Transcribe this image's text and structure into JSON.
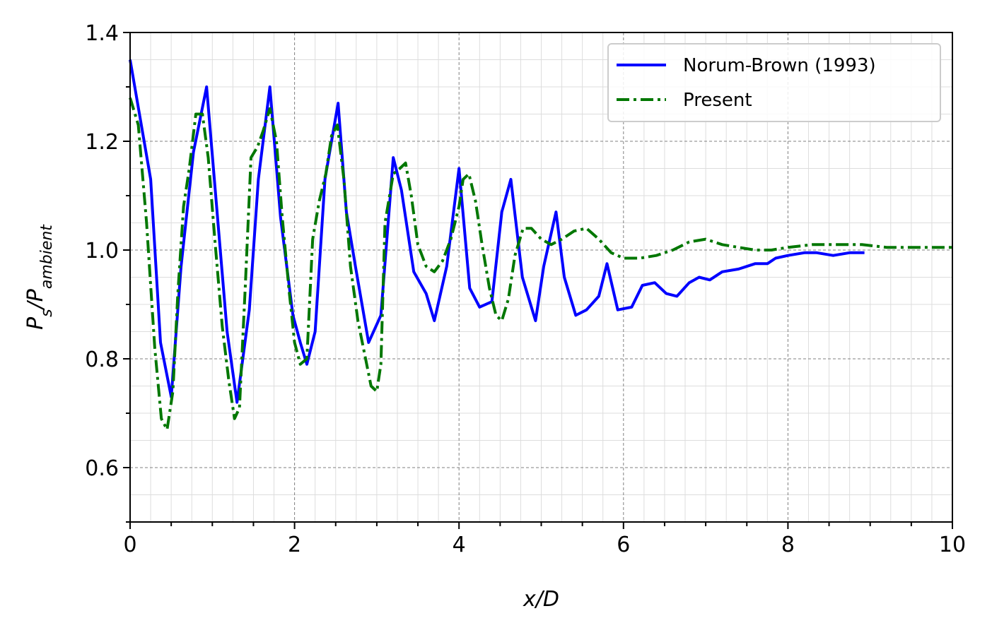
{
  "chart_data": {
    "type": "line",
    "xlabel": "x/D",
    "ylabel": {
      "main": "P",
      "sub1": "s",
      "sep": "/P",
      "sub2": "ambient"
    },
    "xlim": [
      0,
      10
    ],
    "ylim": [
      0.5,
      1.4
    ],
    "xticks": [
      "0",
      "2",
      "4",
      "6",
      "8",
      "10"
    ],
    "yticks": [
      "0.6",
      "0.8",
      "1.0",
      "1.2",
      "1.4"
    ],
    "grid": true,
    "legend_position": "top-right",
    "series": [
      {
        "name": "Norum-Brown (1993)",
        "color": "#0000ff",
        "style": "solid",
        "x": [
          0.0,
          0.25,
          0.37,
          0.5,
          0.62,
          0.77,
          0.93,
          1.08,
          1.18,
          1.3,
          1.45,
          1.56,
          1.7,
          1.83,
          1.98,
          2.07,
          2.15,
          2.25,
          2.37,
          2.53,
          2.63,
          2.74,
          2.9,
          3.05,
          3.2,
          3.3,
          3.45,
          3.6,
          3.7,
          3.85,
          4.0,
          4.13,
          4.25,
          4.4,
          4.52,
          4.63,
          4.77,
          4.93,
          5.03,
          5.18,
          5.28,
          5.42,
          5.55,
          5.7,
          5.8,
          5.93,
          6.1,
          6.23,
          6.38,
          6.52,
          6.65,
          6.8,
          6.92,
          7.05,
          7.2,
          7.4,
          7.6,
          7.75,
          7.85,
          8.0,
          8.2,
          8.35,
          8.55,
          8.75,
          8.93
        ],
        "y": [
          1.35,
          1.13,
          0.83,
          0.73,
          0.97,
          1.18,
          1.3,
          1.03,
          0.85,
          0.72,
          0.89,
          1.13,
          1.3,
          1.06,
          0.88,
          0.83,
          0.79,
          0.85,
          1.13,
          1.27,
          1.07,
          0.97,
          0.83,
          0.88,
          1.17,
          1.11,
          0.96,
          0.92,
          0.87,
          0.97,
          1.15,
          0.93,
          0.895,
          0.905,
          1.07,
          1.13,
          0.95,
          0.87,
          0.97,
          1.07,
          0.95,
          0.88,
          0.89,
          0.915,
          0.975,
          0.89,
          0.895,
          0.935,
          0.94,
          0.92,
          0.915,
          0.94,
          0.95,
          0.945,
          0.96,
          0.965,
          0.975,
          0.975,
          0.985,
          0.99,
          0.995,
          0.995,
          0.99,
          0.995,
          0.995
        ]
      },
      {
        "name": "Present",
        "color": "#007700",
        "style": "dashdot",
        "x": [
          0.0,
          0.1,
          0.2,
          0.3,
          0.38,
          0.45,
          0.52,
          0.58,
          0.65,
          0.72,
          0.8,
          0.88,
          0.95,
          1.03,
          1.12,
          1.2,
          1.27,
          1.33,
          1.4,
          1.47,
          1.55,
          1.62,
          1.7,
          1.78,
          1.85,
          1.93,
          2.0,
          2.07,
          2.15,
          2.22,
          2.3,
          2.38,
          2.45,
          2.52,
          2.6,
          2.68,
          2.77,
          2.85,
          2.93,
          3.0,
          3.05,
          3.1,
          3.2,
          3.28,
          3.35,
          3.42,
          3.5,
          3.6,
          3.7,
          3.8,
          3.9,
          4.0,
          4.05,
          4.12,
          4.2,
          4.28,
          4.37,
          4.45,
          4.52,
          4.6,
          4.68,
          4.78,
          4.88,
          5.0,
          5.12,
          5.25,
          5.4,
          5.55,
          5.7,
          5.85,
          6.0,
          6.2,
          6.4,
          6.6,
          6.8,
          7.0,
          7.2,
          7.4,
          7.6,
          7.8,
          8.0,
          8.3,
          8.6,
          8.9,
          9.2,
          9.5,
          9.8,
          10.0
        ],
        "y": [
          1.28,
          1.23,
          1.05,
          0.82,
          0.69,
          0.67,
          0.74,
          0.92,
          1.08,
          1.15,
          1.25,
          1.25,
          1.17,
          1.02,
          0.86,
          0.76,
          0.69,
          0.71,
          0.93,
          1.17,
          1.19,
          1.22,
          1.26,
          1.2,
          1.06,
          0.93,
          0.83,
          0.79,
          0.8,
          1.02,
          1.09,
          1.14,
          1.21,
          1.23,
          1.13,
          0.97,
          0.87,
          0.81,
          0.75,
          0.74,
          0.79,
          1.05,
          1.14,
          1.15,
          1.16,
          1.1,
          1.01,
          0.97,
          0.96,
          0.98,
          1.02,
          1.08,
          1.13,
          1.14,
          1.09,
          1.01,
          0.93,
          0.88,
          0.87,
          0.91,
          0.99,
          1.04,
          1.04,
          1.02,
          1.01,
          1.02,
          1.035,
          1.04,
          1.02,
          0.995,
          0.985,
          0.985,
          0.99,
          1.0,
          1.015,
          1.02,
          1.01,
          1.005,
          1.0,
          1.0,
          1.005,
          1.01,
          1.01,
          1.01,
          1.005,
          1.005,
          1.005,
          1.005
        ]
      }
    ]
  }
}
